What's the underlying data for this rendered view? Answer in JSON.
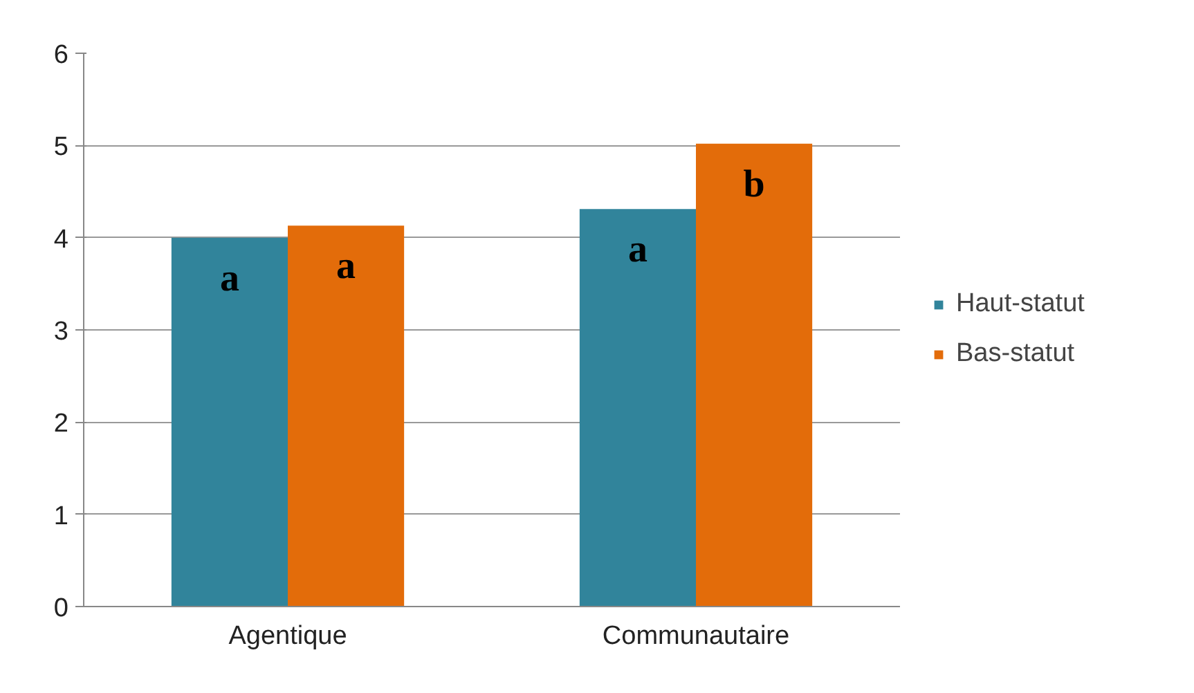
{
  "chart_data": {
    "type": "bar",
    "categories": [
      "Agentique",
      "Communautaire"
    ],
    "series": [
      {
        "name": "Haut-statut",
        "color": "#31849b",
        "values": [
          4.0,
          4.31
        ],
        "value_labels": [
          "a",
          "a"
        ]
      },
      {
        "name": "Bas-statut",
        "color": "#e36c0a",
        "values": [
          4.13,
          5.02
        ],
        "value_labels": [
          "a",
          "b"
        ]
      }
    ],
    "ylim": [
      0,
      6
    ],
    "yticks": [
      0,
      1,
      2,
      3,
      4,
      5,
      6
    ],
    "grid": "y",
    "legend": "right"
  }
}
